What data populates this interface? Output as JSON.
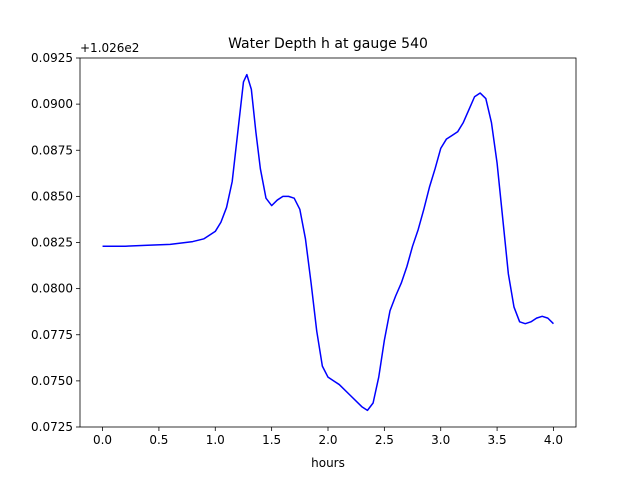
{
  "chart_data": {
    "type": "line",
    "title": "Water Depth h at gauge 540",
    "xlabel": "hours",
    "ylabel": "",
    "y_offset_label": "+1.026e2",
    "xlim": [
      -0.2,
      4.2
    ],
    "ylim": [
      0.0725,
      0.0925
    ],
    "x_ticks": [
      0,
      0.5,
      1,
      1.5,
      2,
      2.5,
      3,
      3.5,
      4
    ],
    "x_tick_labels": [
      "0.0",
      "0.5",
      "1.0",
      "1.5",
      "2.0",
      "2.5",
      "3.0",
      "3.5",
      "4.0"
    ],
    "y_ticks": [
      0.0725,
      0.075,
      0.0775,
      0.08,
      0.0825,
      0.085,
      0.0875,
      0.09,
      0.0925
    ],
    "y_tick_labels": [
      "0.0725",
      "0.0750",
      "0.0775",
      "0.0800",
      "0.0825",
      "0.0850",
      "0.0875",
      "0.0900",
      "0.0925"
    ],
    "grid": false,
    "series": [
      {
        "color": "#0000ff",
        "x": [
          0.0,
          0.2,
          0.4,
          0.6,
          0.8,
          0.9,
          1.0,
          1.05,
          1.1,
          1.15,
          1.2,
          1.25,
          1.28,
          1.32,
          1.36,
          1.4,
          1.45,
          1.5,
          1.55,
          1.6,
          1.65,
          1.7,
          1.75,
          1.8,
          1.85,
          1.9,
          1.95,
          2.0,
          2.05,
          2.1,
          2.2,
          2.3,
          2.35,
          2.4,
          2.45,
          2.5,
          2.55,
          2.6,
          2.65,
          2.7,
          2.75,
          2.8,
          2.85,
          2.9,
          2.95,
          3.0,
          3.05,
          3.1,
          3.15,
          3.2,
          3.25,
          3.3,
          3.35,
          3.4,
          3.45,
          3.5,
          3.55,
          3.6,
          3.65,
          3.7,
          3.75,
          3.8,
          3.85,
          3.9,
          3.95,
          4.0
        ],
        "y": [
          0.0823,
          0.0823,
          0.08235,
          0.0824,
          0.08255,
          0.0827,
          0.0831,
          0.0836,
          0.0844,
          0.0858,
          0.0885,
          0.0912,
          0.0916,
          0.0908,
          0.0885,
          0.0865,
          0.0849,
          0.0845,
          0.0848,
          0.085,
          0.085,
          0.0849,
          0.0843,
          0.0827,
          0.0803,
          0.0777,
          0.0758,
          0.0752,
          0.075,
          0.0748,
          0.0742,
          0.0736,
          0.0734,
          0.0738,
          0.0752,
          0.0772,
          0.0788,
          0.0796,
          0.0803,
          0.0812,
          0.0823,
          0.0832,
          0.0843,
          0.0855,
          0.0865,
          0.0876,
          0.0881,
          0.0883,
          0.0885,
          0.089,
          0.0897,
          0.0904,
          0.0906,
          0.0903,
          0.089,
          0.0868,
          0.0838,
          0.0808,
          0.079,
          0.0782,
          0.0781,
          0.0782,
          0.0784,
          0.0785,
          0.0784,
          0.0781
        ]
      }
    ]
  }
}
